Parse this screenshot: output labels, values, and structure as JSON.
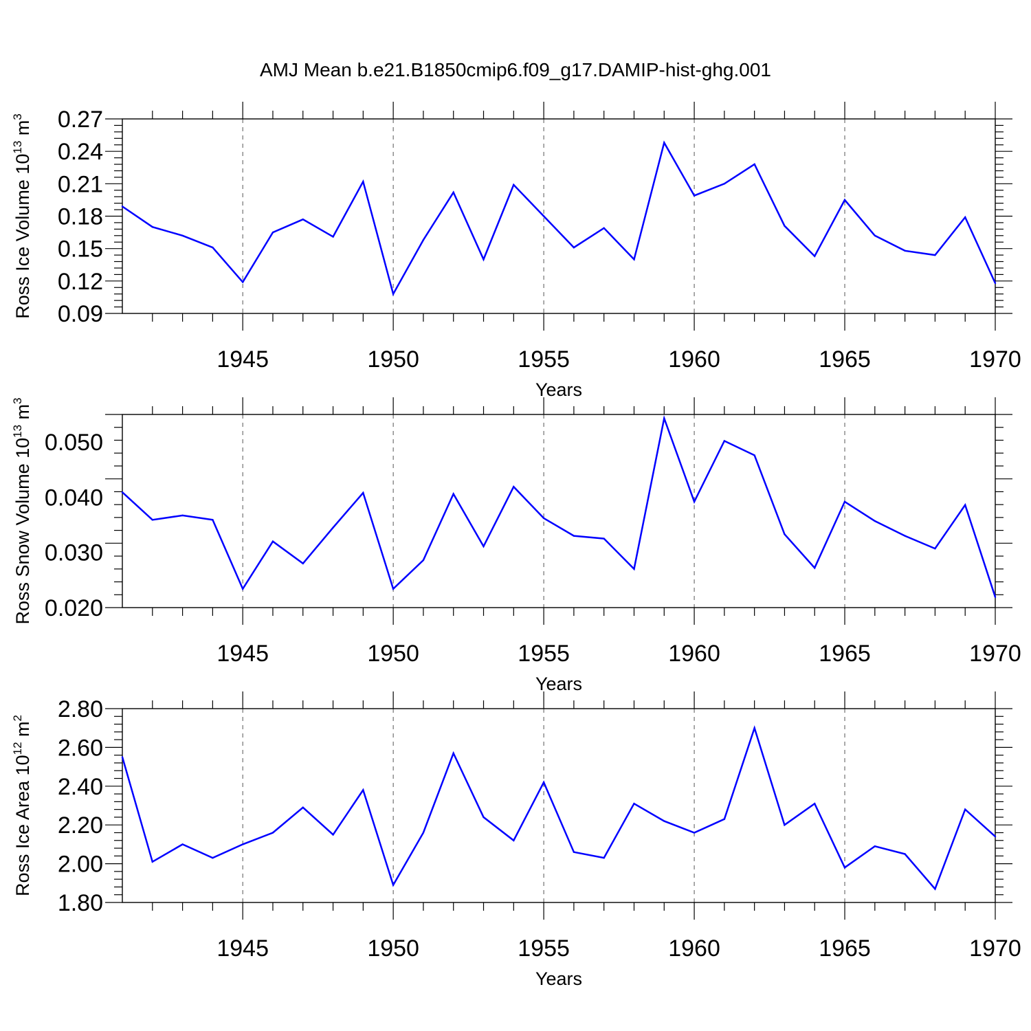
{
  "title": "AMJ Mean b.e21.B1850cmip6.f09_g17.DAMIP-hist-ghg.001",
  "colors": {
    "series": "#0000ff",
    "axis": "#000000",
    "grid": "#555555"
  },
  "chart_data": [
    {
      "type": "line",
      "ylabel_main": "Ross Ice Volume 10",
      "ylabel_exp": "13",
      "ylabel_unit": "m",
      "ylabel_unit_exp": "3",
      "xlabel": "Years",
      "xlim": [
        1941,
        1970
      ],
      "ylim": [
        0.09,
        0.27
      ],
      "yticks": [
        "0.09",
        "0.12",
        "0.15",
        "0.18",
        "0.21",
        "0.24",
        "0.27"
      ],
      "xticks": [
        1945,
        1950,
        1955,
        1960,
        1965,
        1970
      ],
      "grid": "vertical dashed at major x ticks",
      "x": [
        1941,
        1942,
        1943,
        1944,
        1945,
        1946,
        1947,
        1948,
        1949,
        1950,
        1951,
        1952,
        1953,
        1954,
        1955,
        1956,
        1957,
        1958,
        1959,
        1960,
        1961,
        1962,
        1963,
        1964,
        1965,
        1966,
        1967,
        1968,
        1969,
        1970
      ],
      "values": [
        0.189,
        0.17,
        0.162,
        0.151,
        0.119,
        0.165,
        0.177,
        0.161,
        0.212,
        0.108,
        0.158,
        0.202,
        0.14,
        0.209,
        0.18,
        0.151,
        0.169,
        0.14,
        0.248,
        0.199,
        0.21,
        0.228,
        0.171,
        0.143,
        0.195,
        0.162,
        0.148,
        0.144,
        0.179,
        0.118
      ]
    },
    {
      "type": "line",
      "ylabel_main": "Ross Snow Volume 10",
      "ylabel_exp": "13",
      "ylabel_unit": "m",
      "ylabel_unit_exp": "3",
      "xlabel": "Years",
      "xlim": [
        1941,
        1970
      ],
      "ylim": [
        0.02,
        0.055
      ],
      "yticks": [
        "0.020",
        "0.030",
        "0.040",
        "0.050"
      ],
      "xticks": [
        1945,
        1950,
        1955,
        1960,
        1965,
        1970
      ],
      "grid": "vertical dashed at major x ticks",
      "x": [
        1941,
        1942,
        1943,
        1944,
        1945,
        1946,
        1947,
        1948,
        1949,
        1950,
        1951,
        1952,
        1953,
        1954,
        1955,
        1956,
        1957,
        1958,
        1959,
        1960,
        1961,
        1962,
        1963,
        1964,
        1965,
        1966,
        1967,
        1968,
        1969,
        1970
      ],
      "values": [
        0.0409,
        0.0359,
        0.0367,
        0.0359,
        0.0234,
        0.032,
        0.028,
        0.0345,
        0.0408,
        0.0234,
        0.0286,
        0.0406,
        0.0311,
        0.0419,
        0.0362,
        0.033,
        0.0325,
        0.027,
        0.0543,
        0.0392,
        0.0502,
        0.0476,
        0.0333,
        0.0272,
        0.0392,
        0.0357,
        0.033,
        0.0307,
        0.0386,
        0.0219
      ]
    },
    {
      "type": "line",
      "ylabel_main": "Ross Ice Area 10",
      "ylabel_exp": "12",
      "ylabel_unit": "m",
      "ylabel_unit_exp": "2",
      "xlabel": "Years",
      "xlim": [
        1941,
        1970
      ],
      "ylim": [
        1.8,
        2.8
      ],
      "yticks": [
        "1.80",
        "2.00",
        "2.20",
        "2.40",
        "2.60",
        "2.80"
      ],
      "xticks": [
        1945,
        1950,
        1955,
        1960,
        1965,
        1970
      ],
      "grid": "vertical dashed at major x ticks",
      "x": [
        1941,
        1942,
        1943,
        1944,
        1945,
        1946,
        1947,
        1948,
        1949,
        1950,
        1951,
        1952,
        1953,
        1954,
        1955,
        1956,
        1957,
        1958,
        1959,
        1960,
        1961,
        1962,
        1963,
        1964,
        1965,
        1966,
        1967,
        1968,
        1969,
        1970
      ],
      "values": [
        2.55,
        2.01,
        2.1,
        2.03,
        2.1,
        2.16,
        2.29,
        2.15,
        2.38,
        1.89,
        2.16,
        2.57,
        2.24,
        2.12,
        2.42,
        2.06,
        2.03,
        2.31,
        2.22,
        2.16,
        2.23,
        2.7,
        2.2,
        2.31,
        1.98,
        2.09,
        2.05,
        1.87,
        2.28,
        2.14
      ]
    }
  ]
}
